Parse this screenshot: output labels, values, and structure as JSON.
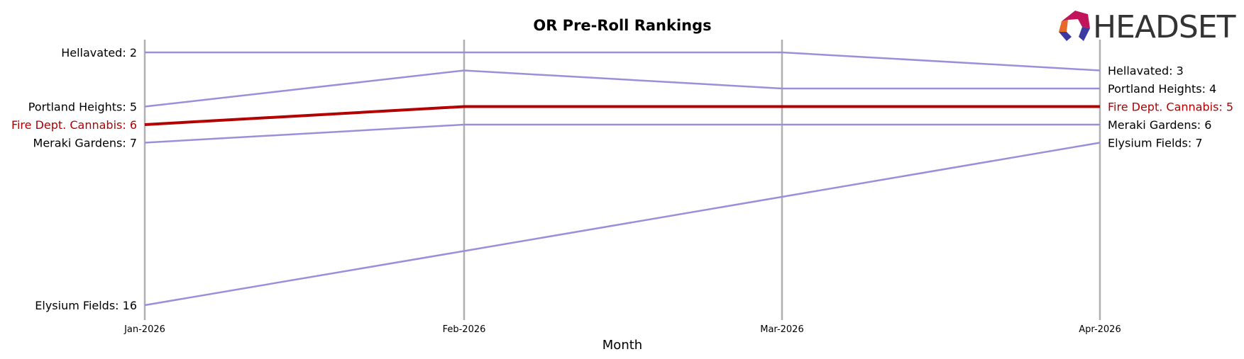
{
  "chart_data": {
    "type": "line",
    "title": "OR Pre-Roll Rankings",
    "xlabel": "Month",
    "ylabel": "",
    "x": [
      "Jan-2026",
      "Feb-2026",
      "Mar-2026",
      "Apr-2026"
    ],
    "y_axis": "rank (lower is better, inverted)",
    "grid": "vertical lines at each month",
    "highlight_color": "#b30000",
    "base_color": "#9b8fdb",
    "series": [
      {
        "name": "Hellavated",
        "values": [
          2,
          2,
          2,
          3
        ],
        "highlight": false
      },
      {
        "name": "Portland Heights",
        "values": [
          5,
          3,
          4,
          4
        ],
        "highlight": false
      },
      {
        "name": "Fire Dept. Cannabis",
        "values": [
          6,
          5,
          5,
          5
        ],
        "highlight": true
      },
      {
        "name": "Meraki Gardens",
        "values": [
          7,
          6,
          6,
          6
        ],
        "highlight": false
      },
      {
        "name": "Elysium Fields",
        "values": [
          16,
          13,
          10,
          7
        ],
        "highlight": false
      }
    ]
  },
  "logo": {
    "text": "HEADSET",
    "icon": "headset-logo-icon"
  }
}
